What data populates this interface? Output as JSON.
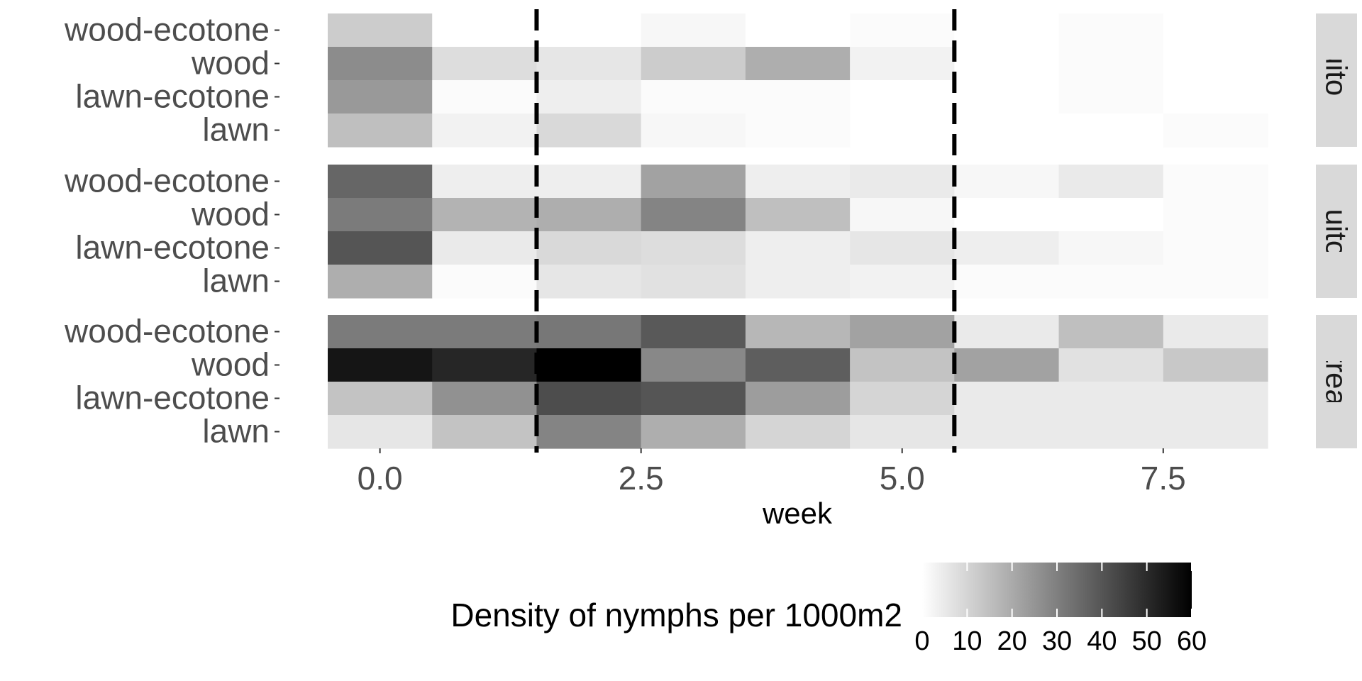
{
  "chart_data": {
    "type": "heatmap",
    "xlabel": "week",
    "ylabel": "",
    "x_ticks": [
      0.0,
      2.5,
      5.0,
      7.5
    ],
    "x_tick_labels": [
      "0.0",
      "2.5",
      "5.0",
      "7.5"
    ],
    "xlim": [
      -0.5,
      8.5
    ],
    "weeks": [
      0,
      1,
      2,
      3,
      4,
      5,
      6,
      7,
      8
    ],
    "rows": [
      "wood-ecotone",
      "wood",
      "lawn-ecotone",
      "lawn"
    ],
    "vlines": [
      1.5,
      5.5
    ],
    "legend": {
      "title": "Density of nymphs per 1000m2",
      "placement": "bottom",
      "ticks": [
        0,
        10,
        20,
        30,
        40,
        50,
        60
      ],
      "tick_labels": [
        "0",
        "10",
        "20",
        "30",
        "40",
        "50",
        "60"
      ],
      "range": [
        0,
        60
      ],
      "low_color": "#ffffff",
      "high_color": "#000000"
    },
    "panels": [
      {
        "strip_label": "Mosquito & Tick",
        "values": [
          [
            12,
            0,
            0,
            2,
            0,
            1,
            0,
            1,
            0
          ],
          [
            27,
            8,
            6,
            12,
            19,
            3,
            0,
            1,
            0
          ],
          [
            24,
            1,
            4,
            1,
            1,
            0,
            0,
            1,
            0
          ],
          [
            15,
            3,
            9,
            2,
            1,
            0,
            0,
            0,
            1
          ]
        ]
      },
      {
        "strip_label": "Mosquito Only",
        "values": [
          [
            36,
            4,
            4,
            22,
            4,
            5,
            2,
            5,
            1
          ],
          [
            31,
            18,
            19,
            29,
            15,
            2,
            0,
            0,
            1
          ],
          [
            40,
            5,
            9,
            8,
            4,
            6,
            4,
            2,
            1
          ],
          [
            19,
            1,
            6,
            7,
            4,
            3,
            1,
            1,
            1
          ]
        ]
      },
      {
        "strip_label": "Untreated",
        "values": [
          [
            31,
            31,
            32,
            39,
            17,
            22,
            5,
            15,
            5
          ],
          [
            55,
            51,
            60,
            28,
            38,
            14,
            22,
            7,
            13
          ],
          [
            14,
            26,
            42,
            40,
            23,
            10,
            5,
            5,
            5
          ],
          [
            6,
            14,
            29,
            19,
            10,
            6,
            5,
            5,
            5
          ]
        ]
      }
    ],
    "grid": false
  }
}
